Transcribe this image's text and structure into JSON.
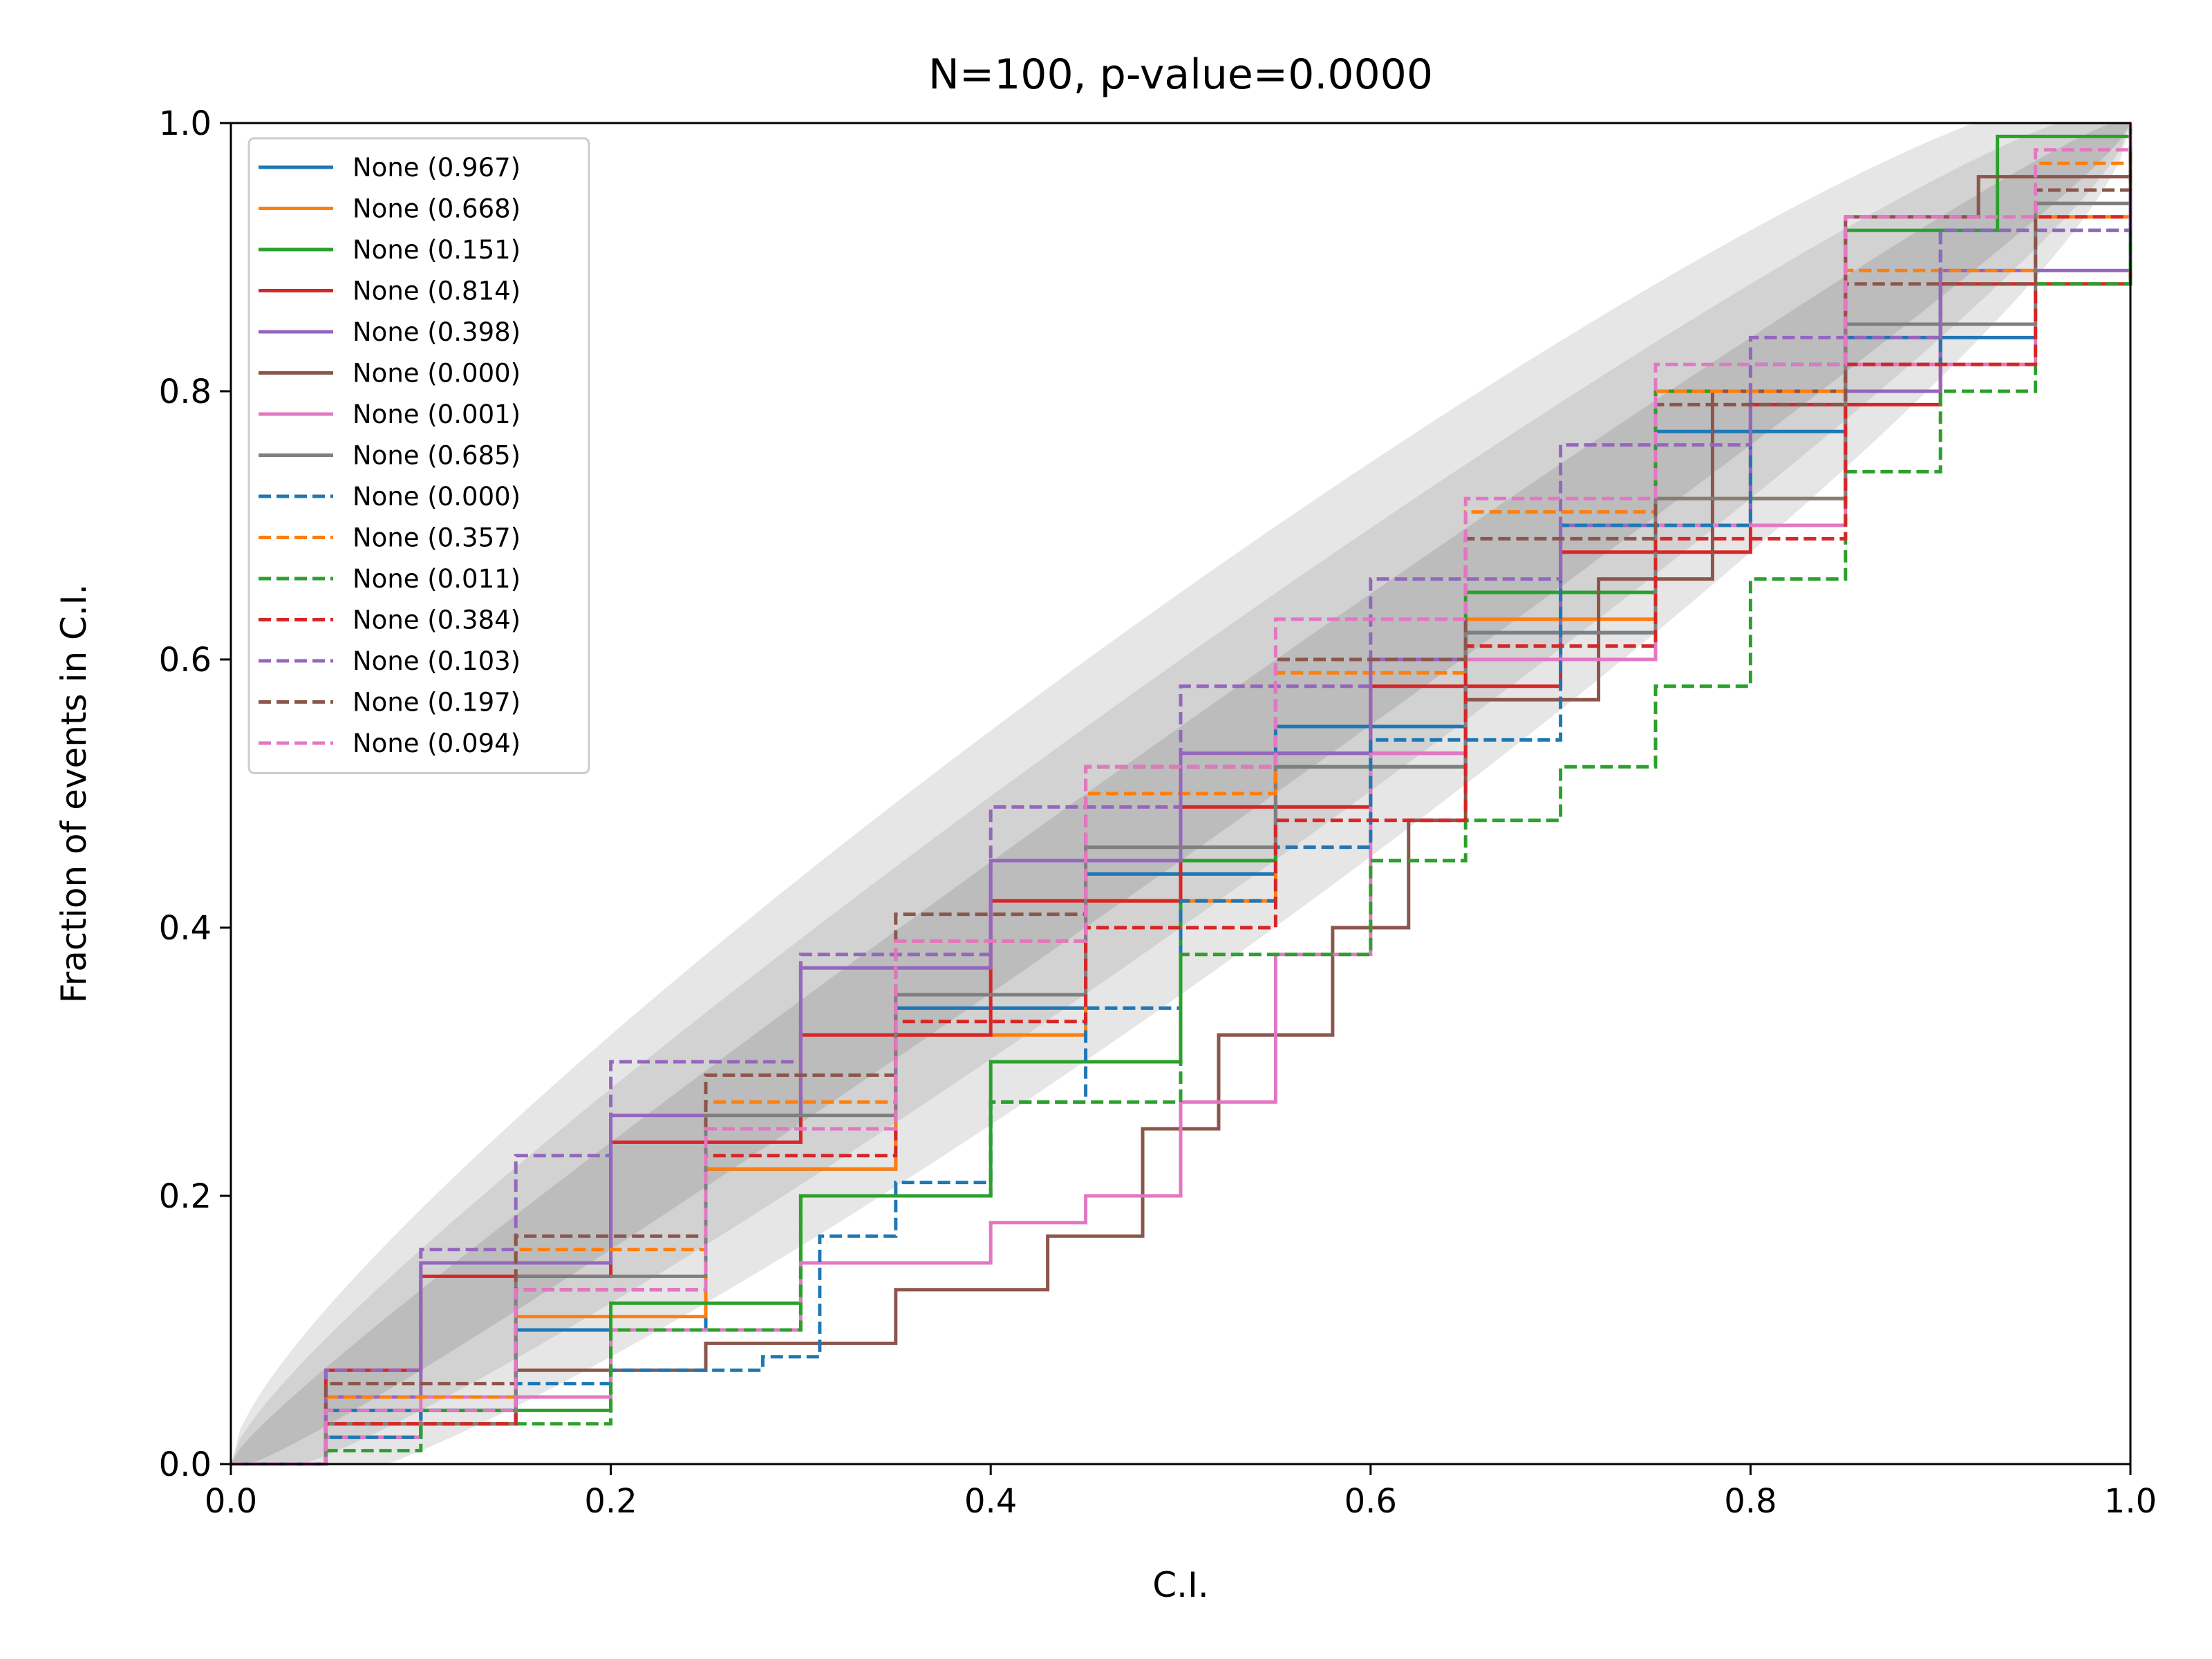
{
  "chart_data": {
    "type": "line",
    "title": "N=100, p-value=0.0000",
    "xlabel": "C.I.",
    "ylabel": "Fraction of events in C.I.",
    "xlim": [
      0,
      1
    ],
    "ylim": [
      0,
      1
    ],
    "xticks": [
      "0.0",
      "0.2",
      "0.4",
      "0.6",
      "0.8",
      "1.0"
    ],
    "yticks": [
      "0.0",
      "0.2",
      "0.4",
      "0.6",
      "0.8",
      "1.0"
    ],
    "grid": false,
    "legend_position": "upper-left",
    "n": 100,
    "confidence_bands": [
      {
        "sigma": 3,
        "color": "#e6e6e6"
      },
      {
        "sigma": 2,
        "color": "#d2d2d2"
      },
      {
        "sigma": 1,
        "color": "#bcbcbc"
      }
    ],
    "series": [
      {
        "name": "None (0.967)",
        "color": "#1f77b4",
        "dashed": false,
        "x": [
          0,
          0.05,
          0.15,
          0.25,
          0.35,
          0.45,
          0.55,
          0.65,
          0.75,
          0.85,
          0.95,
          1.0
        ],
        "y": [
          0,
          0.04,
          0.1,
          0.22,
          0.34,
          0.44,
          0.55,
          0.62,
          0.77,
          0.84,
          0.94,
          1.0
        ]
      },
      {
        "name": "None (0.668)",
        "color": "#ff7f0e",
        "dashed": false,
        "x": [
          0,
          0.05,
          0.15,
          0.25,
          0.35,
          0.45,
          0.55,
          0.65,
          0.75,
          0.85,
          0.95,
          1.0
        ],
        "y": [
          0,
          0.03,
          0.11,
          0.22,
          0.32,
          0.42,
          0.53,
          0.63,
          0.72,
          0.82,
          0.93,
          1.0
        ]
      },
      {
        "name": "None (0.151)",
        "color": "#2ca02c",
        "dashed": false,
        "x": [
          0,
          0.05,
          0.1,
          0.2,
          0.3,
          0.4,
          0.5,
          0.55,
          0.65,
          0.75,
          0.85,
          0.93,
          1.0
        ],
        "y": [
          0,
          0.02,
          0.04,
          0.12,
          0.2,
          0.3,
          0.45,
          0.52,
          0.65,
          0.8,
          0.92,
          0.99,
          1.0
        ]
      },
      {
        "name": "None (0.814)",
        "color": "#d62728",
        "dashed": false,
        "x": [
          0,
          0.05,
          0.1,
          0.2,
          0.3,
          0.4,
          0.5,
          0.6,
          0.7,
          0.8,
          0.9,
          1.0
        ],
        "y": [
          0,
          0.07,
          0.14,
          0.24,
          0.32,
          0.42,
          0.49,
          0.58,
          0.68,
          0.79,
          0.88,
          1.0
        ]
      },
      {
        "name": "None (0.398)",
        "color": "#9467bd",
        "dashed": false,
        "x": [
          0,
          0.05,
          0.1,
          0.2,
          0.3,
          0.4,
          0.5,
          0.6,
          0.7,
          0.8,
          0.9,
          1.0
        ],
        "y": [
          0,
          0.05,
          0.15,
          0.26,
          0.37,
          0.45,
          0.53,
          0.6,
          0.7,
          0.8,
          0.89,
          1.0
        ]
      },
      {
        "name": "None (0.000)",
        "color": "#8c564b",
        "dashed": false,
        "x": [
          0,
          0.05,
          0.15,
          0.25,
          0.35,
          0.43,
          0.48,
          0.52,
          0.58,
          0.62,
          0.65,
          0.72,
          0.78,
          0.85,
          0.92,
          1.0
        ],
        "y": [
          0,
          0.03,
          0.07,
          0.09,
          0.13,
          0.17,
          0.25,
          0.32,
          0.4,
          0.48,
          0.57,
          0.66,
          0.8,
          0.93,
          0.96,
          1.0
        ]
      },
      {
        "name": "None (0.001)",
        "color": "#e377c2",
        "dashed": false,
        "x": [
          0,
          0.05,
          0.1,
          0.2,
          0.3,
          0.4,
          0.45,
          0.5,
          0.55,
          0.6,
          0.65,
          0.75,
          0.85,
          0.95,
          1.0
        ],
        "y": [
          0,
          0.02,
          0.05,
          0.1,
          0.15,
          0.18,
          0.2,
          0.27,
          0.38,
          0.53,
          0.6,
          0.7,
          0.82,
          0.94,
          1.0
        ]
      },
      {
        "name": "None (0.685)",
        "color": "#7f7f7f",
        "dashed": false,
        "x": [
          0,
          0.05,
          0.15,
          0.25,
          0.35,
          0.45,
          0.55,
          0.65,
          0.75,
          0.85,
          0.95,
          1.0
        ],
        "y": [
          0,
          0.03,
          0.14,
          0.26,
          0.35,
          0.46,
          0.52,
          0.62,
          0.72,
          0.85,
          0.94,
          1.0
        ]
      },
      {
        "name": "None (0.000)",
        "color": "#1f77b4",
        "dashed": true,
        "x": [
          0,
          0.05,
          0.1,
          0.15,
          0.2,
          0.28,
          0.31,
          0.35,
          0.4,
          0.45,
          0.5,
          0.55,
          0.6,
          0.7,
          0.8,
          0.9,
          1.0
        ],
        "y": [
          0,
          0.02,
          0.04,
          0.06,
          0.07,
          0.08,
          0.17,
          0.21,
          0.27,
          0.34,
          0.42,
          0.46,
          0.54,
          0.7,
          0.82,
          0.92,
          1.0
        ]
      },
      {
        "name": "None (0.357)",
        "color": "#ff7f0e",
        "dashed": true,
        "x": [
          0,
          0.05,
          0.15,
          0.25,
          0.35,
          0.45,
          0.55,
          0.65,
          0.75,
          0.85,
          0.95,
          1.0
        ],
        "y": [
          0,
          0.05,
          0.16,
          0.27,
          0.39,
          0.5,
          0.59,
          0.71,
          0.8,
          0.89,
          0.97,
          1.0
        ]
      },
      {
        "name": "None (0.011)",
        "color": "#2ca02c",
        "dashed": true,
        "x": [
          0,
          0.05,
          0.1,
          0.2,
          0.3,
          0.4,
          0.5,
          0.6,
          0.65,
          0.7,
          0.75,
          0.8,
          0.85,
          0.9,
          0.95,
          1.0
        ],
        "y": [
          0,
          0.01,
          0.03,
          0.1,
          0.2,
          0.27,
          0.38,
          0.45,
          0.48,
          0.52,
          0.58,
          0.66,
          0.74,
          0.8,
          0.88,
          1.0
        ]
      },
      {
        "name": "None (0.384)",
        "color": "#d62728",
        "dashed": true,
        "x": [
          0,
          0.05,
          0.15,
          0.25,
          0.35,
          0.45,
          0.55,
          0.65,
          0.75,
          0.85,
          0.95,
          1.0
        ],
        "y": [
          0,
          0.03,
          0.13,
          0.23,
          0.33,
          0.4,
          0.48,
          0.61,
          0.69,
          0.82,
          0.93,
          1.0
        ]
      },
      {
        "name": "None (0.103)",
        "color": "#9467bd",
        "dashed": true,
        "x": [
          0,
          0.05,
          0.1,
          0.15,
          0.2,
          0.3,
          0.4,
          0.5,
          0.6,
          0.7,
          0.8,
          0.9,
          1.0
        ],
        "y": [
          0,
          0.07,
          0.16,
          0.23,
          0.3,
          0.38,
          0.49,
          0.58,
          0.66,
          0.76,
          0.84,
          0.92,
          1.0
        ]
      },
      {
        "name": "None (0.197)",
        "color": "#8c564b",
        "dashed": true,
        "x": [
          0,
          0.05,
          0.15,
          0.25,
          0.35,
          0.45,
          0.55,
          0.65,
          0.75,
          0.85,
          0.95,
          1.0
        ],
        "y": [
          0,
          0.06,
          0.17,
          0.29,
          0.41,
          0.52,
          0.6,
          0.69,
          0.79,
          0.88,
          0.95,
          1.0
        ]
      },
      {
        "name": "None (0.094)",
        "color": "#e377c2",
        "dashed": true,
        "x": [
          0,
          0.05,
          0.15,
          0.25,
          0.35,
          0.45,
          0.55,
          0.65,
          0.75,
          0.85,
          0.95,
          1.0
        ],
        "y": [
          0,
          0.04,
          0.13,
          0.25,
          0.39,
          0.52,
          0.63,
          0.72,
          0.82,
          0.93,
          0.98,
          1.0
        ]
      }
    ]
  }
}
